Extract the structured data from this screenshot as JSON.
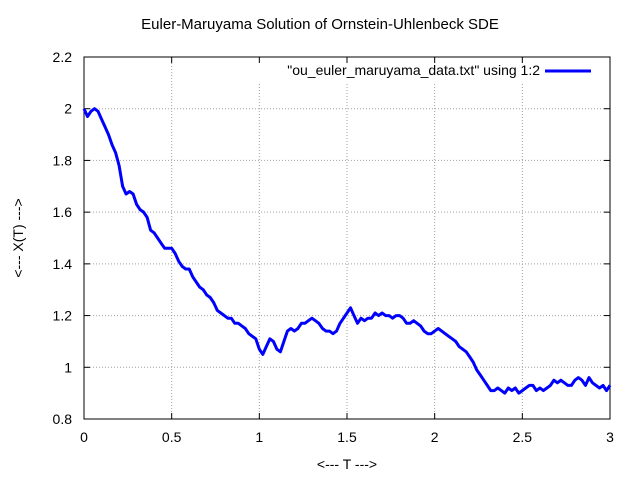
{
  "chart_data": {
    "type": "line",
    "title": "Euler-Maruyama Solution of Ornstein-Uhlenbeck SDE",
    "xlabel": "<--- T --->",
    "ylabel": "<--- X(T) --->",
    "xlim": [
      0,
      3
    ],
    "ylim": [
      0.8,
      2.2
    ],
    "xticks": [
      {
        "value": 0,
        "label": "0"
      },
      {
        "value": 0.5,
        "label": "0.5"
      },
      {
        "value": 1,
        "label": "1"
      },
      {
        "value": 1.5,
        "label": "1.5"
      },
      {
        "value": 2,
        "label": "2"
      },
      {
        "value": 2.5,
        "label": "2.5"
      },
      {
        "value": 3,
        "label": "3"
      }
    ],
    "yticks": [
      {
        "value": 0.8,
        "label": "0.8"
      },
      {
        "value": 1.0,
        "label": "1"
      },
      {
        "value": 1.2,
        "label": "1.2"
      },
      {
        "value": 1.4,
        "label": "1.4"
      },
      {
        "value": 1.6,
        "label": "1.6"
      },
      {
        "value": 1.8,
        "label": "1.8"
      },
      {
        "value": 2.0,
        "label": "2"
      },
      {
        "value": 2.2,
        "label": "2.2"
      }
    ],
    "grid": true,
    "legend_position": "top-right",
    "series": [
      {
        "name": "\"ou_euler_maruyama_data.txt\" using 1:2",
        "color": "#0000ff",
        "x": [
          0,
          0.02,
          0.04,
          0.06,
          0.08,
          0.1,
          0.12,
          0.14,
          0.16,
          0.18,
          0.2,
          0.22,
          0.24,
          0.26,
          0.28,
          0.3,
          0.32,
          0.34,
          0.36,
          0.38,
          0.4,
          0.42,
          0.44,
          0.46,
          0.48,
          0.5,
          0.52,
          0.54,
          0.56,
          0.58,
          0.6,
          0.62,
          0.64,
          0.66,
          0.68,
          0.7,
          0.72,
          0.74,
          0.76,
          0.78,
          0.8,
          0.82,
          0.84,
          0.86,
          0.88,
          0.9,
          0.92,
          0.94,
          0.96,
          0.98,
          1.0,
          1.02,
          1.04,
          1.06,
          1.08,
          1.1,
          1.12,
          1.14,
          1.16,
          1.18,
          1.2,
          1.22,
          1.24,
          1.26,
          1.28,
          1.3,
          1.32,
          1.34,
          1.36,
          1.38,
          1.4,
          1.42,
          1.44,
          1.46,
          1.48,
          1.5,
          1.52,
          1.54,
          1.56,
          1.58,
          1.6,
          1.62,
          1.64,
          1.66,
          1.68,
          1.7,
          1.72,
          1.74,
          1.76,
          1.78,
          1.8,
          1.82,
          1.84,
          1.86,
          1.88,
          1.9,
          1.92,
          1.94,
          1.96,
          1.98,
          2.0,
          2.02,
          2.04,
          2.06,
          2.08,
          2.1,
          2.12,
          2.14,
          2.16,
          2.18,
          2.2,
          2.22,
          2.24,
          2.26,
          2.28,
          2.3,
          2.32,
          2.34,
          2.36,
          2.38,
          2.4,
          2.42,
          2.44,
          2.46,
          2.48,
          2.5,
          2.52,
          2.54,
          2.56,
          2.58,
          2.6,
          2.62,
          2.64,
          2.66,
          2.68,
          2.7,
          2.72,
          2.74,
          2.76,
          2.78,
          2.8,
          2.82,
          2.84,
          2.86,
          2.88,
          2.9,
          2.92,
          2.94,
          2.96,
          2.98,
          3.0
        ],
        "y": [
          2.0,
          1.97,
          1.99,
          2.0,
          1.99,
          1.96,
          1.93,
          1.9,
          1.86,
          1.83,
          1.78,
          1.7,
          1.67,
          1.68,
          1.67,
          1.63,
          1.61,
          1.6,
          1.58,
          1.53,
          1.52,
          1.5,
          1.48,
          1.46,
          1.46,
          1.46,
          1.44,
          1.41,
          1.39,
          1.38,
          1.38,
          1.35,
          1.33,
          1.31,
          1.3,
          1.28,
          1.27,
          1.25,
          1.22,
          1.21,
          1.2,
          1.19,
          1.19,
          1.17,
          1.17,
          1.16,
          1.15,
          1.13,
          1.12,
          1.11,
          1.07,
          1.05,
          1.08,
          1.11,
          1.1,
          1.07,
          1.06,
          1.1,
          1.14,
          1.15,
          1.14,
          1.15,
          1.17,
          1.17,
          1.18,
          1.19,
          1.18,
          1.17,
          1.15,
          1.14,
          1.14,
          1.13,
          1.14,
          1.17,
          1.19,
          1.21,
          1.23,
          1.2,
          1.17,
          1.19,
          1.18,
          1.19,
          1.19,
          1.21,
          1.2,
          1.21,
          1.2,
          1.2,
          1.19,
          1.2,
          1.2,
          1.19,
          1.17,
          1.17,
          1.18,
          1.17,
          1.16,
          1.14,
          1.13,
          1.13,
          1.14,
          1.15,
          1.14,
          1.13,
          1.12,
          1.11,
          1.1,
          1.08,
          1.07,
          1.06,
          1.04,
          1.02,
          0.99,
          0.97,
          0.95,
          0.93,
          0.91,
          0.91,
          0.92,
          0.91,
          0.9,
          0.92,
          0.91,
          0.92,
          0.9,
          0.91,
          0.92,
          0.93,
          0.93,
          0.91,
          0.92,
          0.91,
          0.92,
          0.93,
          0.95,
          0.94,
          0.95,
          0.94,
          0.93,
          0.93,
          0.95,
          0.96,
          0.95,
          0.93,
          0.96,
          0.94,
          0.93,
          0.92,
          0.93,
          0.91,
          0.93
        ]
      }
    ]
  }
}
